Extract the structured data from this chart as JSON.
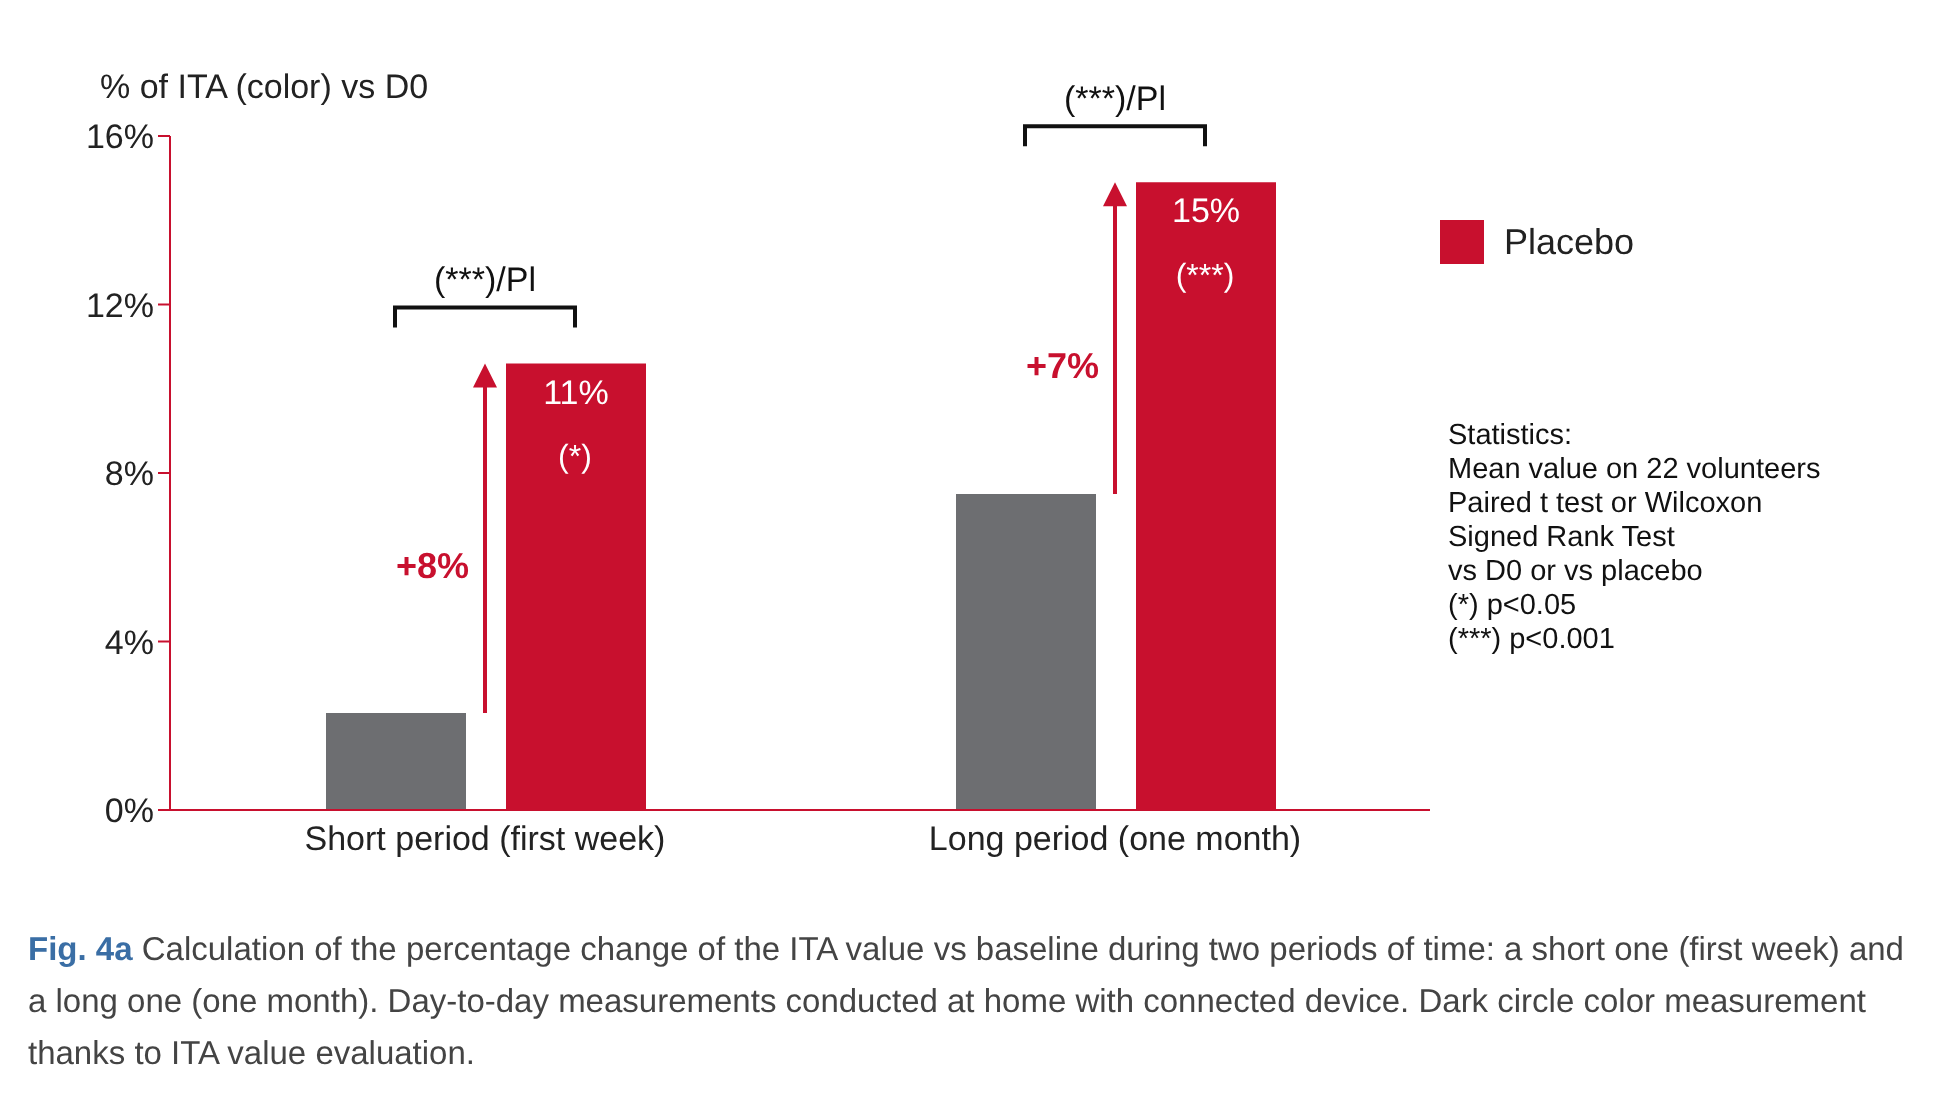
{
  "chart_data": {
    "type": "bar",
    "ylabel": "% of ITA (color) vs D0",
    "categories": [
      "Short period (first week)",
      "Long period (one month)"
    ],
    "series": [
      {
        "color": "#6d6e71",
        "values": [
          2.3,
          7.5
        ]
      },
      {
        "name": "Placebo",
        "color": "#c8102e",
        "values": [
          10.6,
          14.9
        ],
        "value_labels": [
          "11%",
          "15%"
        ]
      }
    ],
    "ylim": [
      0,
      16
    ],
    "yticks": [
      {
        "value": 0,
        "label": "0%"
      },
      {
        "value": 4,
        "label": "4%"
      },
      {
        "value": 8,
        "label": "8%"
      },
      {
        "value": 12,
        "label": "12%"
      },
      {
        "value": 16,
        "label": "16%"
      }
    ],
    "grid": false,
    "legend": "right",
    "annotations": [
      "(*)",
      "+8%",
      "(***)/Pl",
      "(***)",
      "+7%",
      "(***)/Pl",
      "Statistics:\nMean value on 22 volunteers\nPaired t test or Wilcoxon\nSigned Rank Test\nvs D0 or vs placebo\n(*)   p<0.05\n(***) p<0.001",
      "Fig. 4a Calculation of the percentage change of the ITA value vs baseline during two periods of time: a short one (first week) and a long one (one month). Day-to-day measurements conducted at home with connected device. Dark circle color measurement thanks to ITA value evaluation."
    ]
  }
}
